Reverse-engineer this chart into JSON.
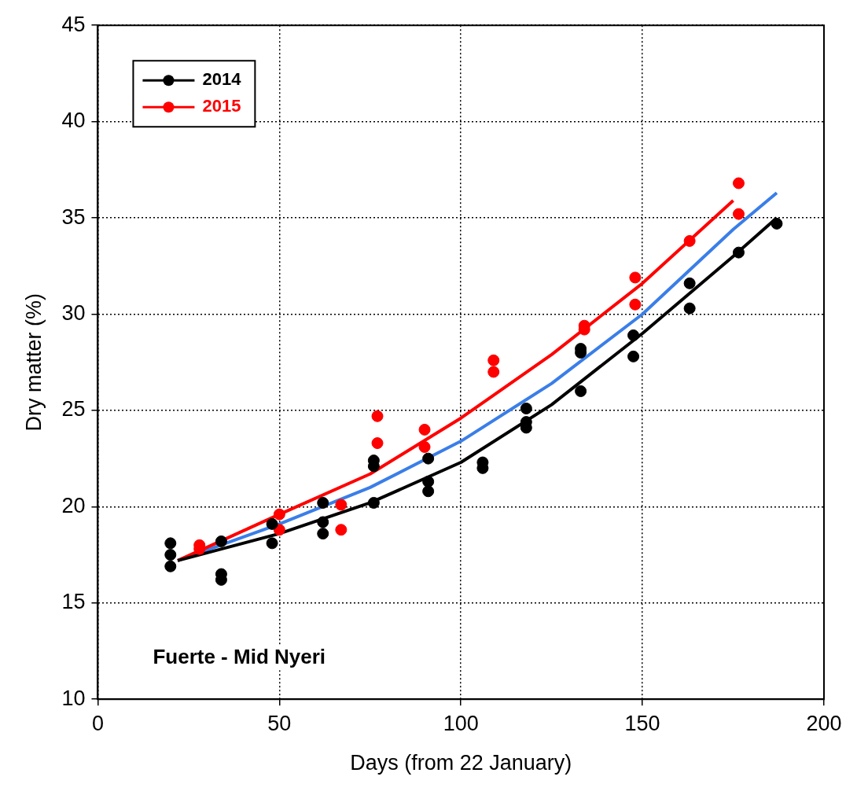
{
  "chart_data": {
    "type": "scatter",
    "xlabel": "Days (from 22 January)",
    "ylabel": "Dry matter (%)",
    "xlim": [
      0,
      200
    ],
    "xticks": [
      0,
      50,
      100,
      150,
      200
    ],
    "ylim": [
      10,
      45
    ],
    "yticks": [
      10,
      15,
      20,
      25,
      30,
      35,
      40,
      45
    ],
    "grid": true,
    "legend": "top left",
    "annotations": [
      "Fuerte - Mid Nyeri"
    ],
    "series": [
      {
        "name": "2014",
        "marker": "circle",
        "color": "#000000",
        "x": [
          20,
          20,
          20,
          34,
          34,
          34,
          48,
          48,
          62,
          62,
          62,
          76,
          76,
          76,
          91,
          91,
          91,
          106,
          106,
          118,
          118,
          118,
          133,
          133,
          133,
          147.5,
          147.5,
          163,
          163,
          176.5,
          187
        ],
        "values": [
          18.1,
          17.5,
          16.9,
          18.2,
          16.5,
          16.2,
          19.1,
          18.1,
          20.2,
          19.2,
          18.6,
          22.4,
          22.1,
          20.2,
          22.5,
          21.3,
          20.8,
          22.3,
          22.0,
          25.1,
          24.4,
          24.1,
          28.2,
          28.0,
          26.0,
          28.9,
          27.8,
          31.6,
          30.3,
          33.2,
          34.7
        ]
      },
      {
        "name": "2015",
        "marker": "circle",
        "color": "#ff0000",
        "x": [
          28,
          28,
          50,
          50,
          67,
          67,
          77,
          77,
          90,
          90,
          109,
          109,
          134,
          134,
          148,
          148,
          163,
          176.5,
          176.5
        ],
        "values": [
          18.0,
          17.8,
          19.6,
          18.8,
          20.1,
          18.8,
          24.7,
          23.3,
          24.0,
          23.1,
          27.6,
          27.0,
          29.4,
          29.2,
          31.9,
          30.5,
          33.8,
          36.8,
          35.2
        ]
      },
      {
        "type": "line",
        "marker": "none",
        "color": "#000000",
        "x": [
          22,
          50,
          75,
          100,
          125,
          150,
          175,
          187
        ],
        "values": [
          17.2,
          18.6,
          20.2,
          22.3,
          25.3,
          29.0,
          33.0,
          35.0
        ]
      },
      {
        "type": "line",
        "marker": "none",
        "color": "#ff0000",
        "x": [
          22,
          50,
          75,
          100,
          125,
          150,
          175
        ],
        "values": [
          17.2,
          19.6,
          21.7,
          24.6,
          27.9,
          31.6,
          35.9
        ]
      },
      {
        "type": "line",
        "marker": "none",
        "color": "#3a7ee8",
        "x": [
          22,
          50,
          75,
          100,
          125,
          150,
          175,
          187
        ],
        "values": [
          17.2,
          19.1,
          21.0,
          23.4,
          26.4,
          30.0,
          34.4,
          36.3
        ]
      }
    ]
  }
}
